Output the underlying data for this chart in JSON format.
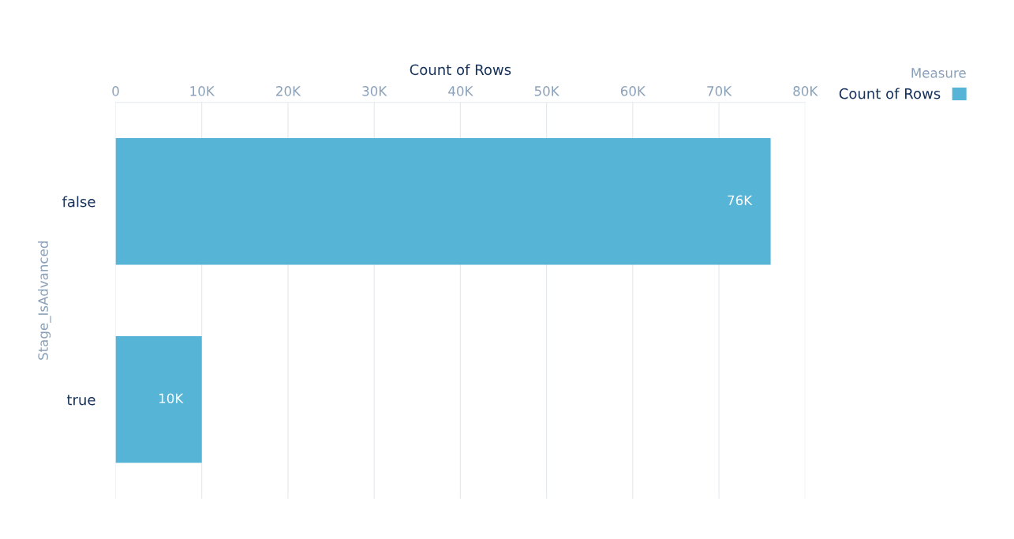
{
  "chart_data": {
    "type": "bar",
    "orientation": "horizontal",
    "xlabel": "Count of Rows",
    "ylabel": "Stage_IsAdvanced",
    "legend_title": "Measure",
    "categories": [
      "false",
      "true"
    ],
    "series": [
      {
        "name": "Count of Rows",
        "color": "#56b5d6",
        "values": [
          76000,
          10000
        ],
        "value_labels": [
          "76K",
          "10K"
        ]
      }
    ],
    "xlim": [
      0,
      80000
    ],
    "xticks": [
      0,
      {
        "value": 10000,
        "label": "10K"
      },
      {
        "value": 20000,
        "label": "20K"
      },
      {
        "value": 30000,
        "label": "30K"
      },
      {
        "value": 40000,
        "label": "40K"
      },
      {
        "value": 50000,
        "label": "50K"
      },
      {
        "value": 60000,
        "label": "60K"
      },
      {
        "value": 70000,
        "label": "70K"
      },
      {
        "value": 80000,
        "label": "80K"
      }
    ],
    "grid": "x",
    "legend": "top right"
  }
}
